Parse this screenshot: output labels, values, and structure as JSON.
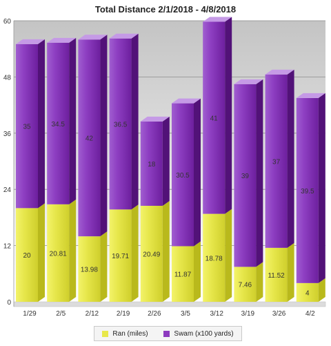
{
  "chart_data": {
    "type": "bar",
    "stacked": true,
    "title": "Total Distance 2/1/2018 - 4/8/2018",
    "categories": [
      "1/29",
      "2/5",
      "2/12",
      "2/19",
      "2/26",
      "3/5",
      "3/12",
      "3/19",
      "3/26",
      "4/2"
    ],
    "series": [
      {
        "name": "Ran (miles)",
        "color": "#e8e84a",
        "values": [
          20,
          20.81,
          13.98,
          19.71,
          20.49,
          11.87,
          18.78,
          7.46,
          11.52,
          4
        ]
      },
      {
        "name": "Swam (x100 yards)",
        "color": "#8d3bbf",
        "values": [
          35,
          34.5,
          42,
          36.5,
          18,
          30.5,
          41,
          39,
          37,
          39.5
        ]
      }
    ],
    "ylim": [
      0,
      60
    ],
    "yticks": [
      0,
      12,
      24,
      36,
      48,
      60
    ],
    "grid": true,
    "legend_position": "bottom"
  }
}
